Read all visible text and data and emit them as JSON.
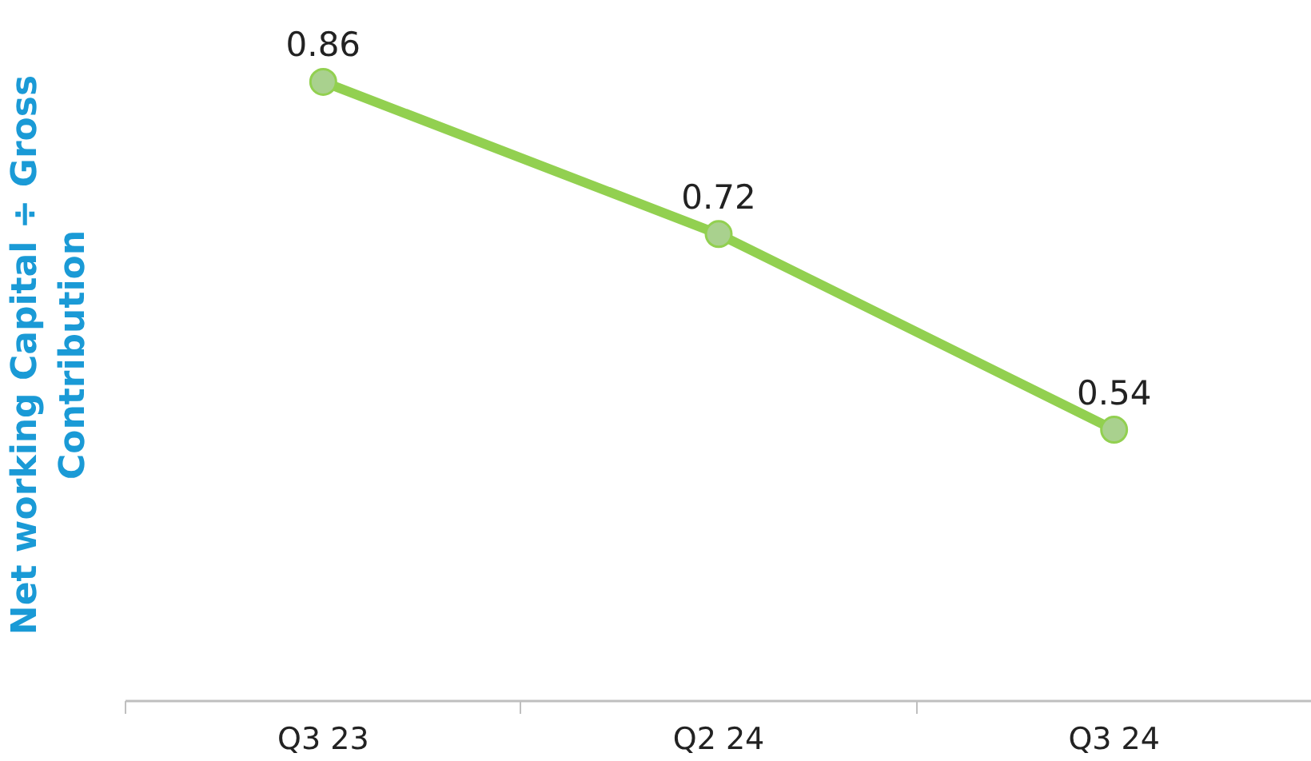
{
  "chart_data": {
    "type": "line",
    "ylabel": "Net working Capital ÷ Gross Contribution",
    "categories": [
      "Q3 23",
      "Q2 24",
      "Q3 24"
    ],
    "series": [
      {
        "color": "#92d050",
        "values": [
          0.86,
          0.72,
          0.54
        ]
      }
    ],
    "data_labels": true,
    "marker": "circle",
    "line_style": "solid",
    "tick_labels": "x",
    "grid": false
  }
}
